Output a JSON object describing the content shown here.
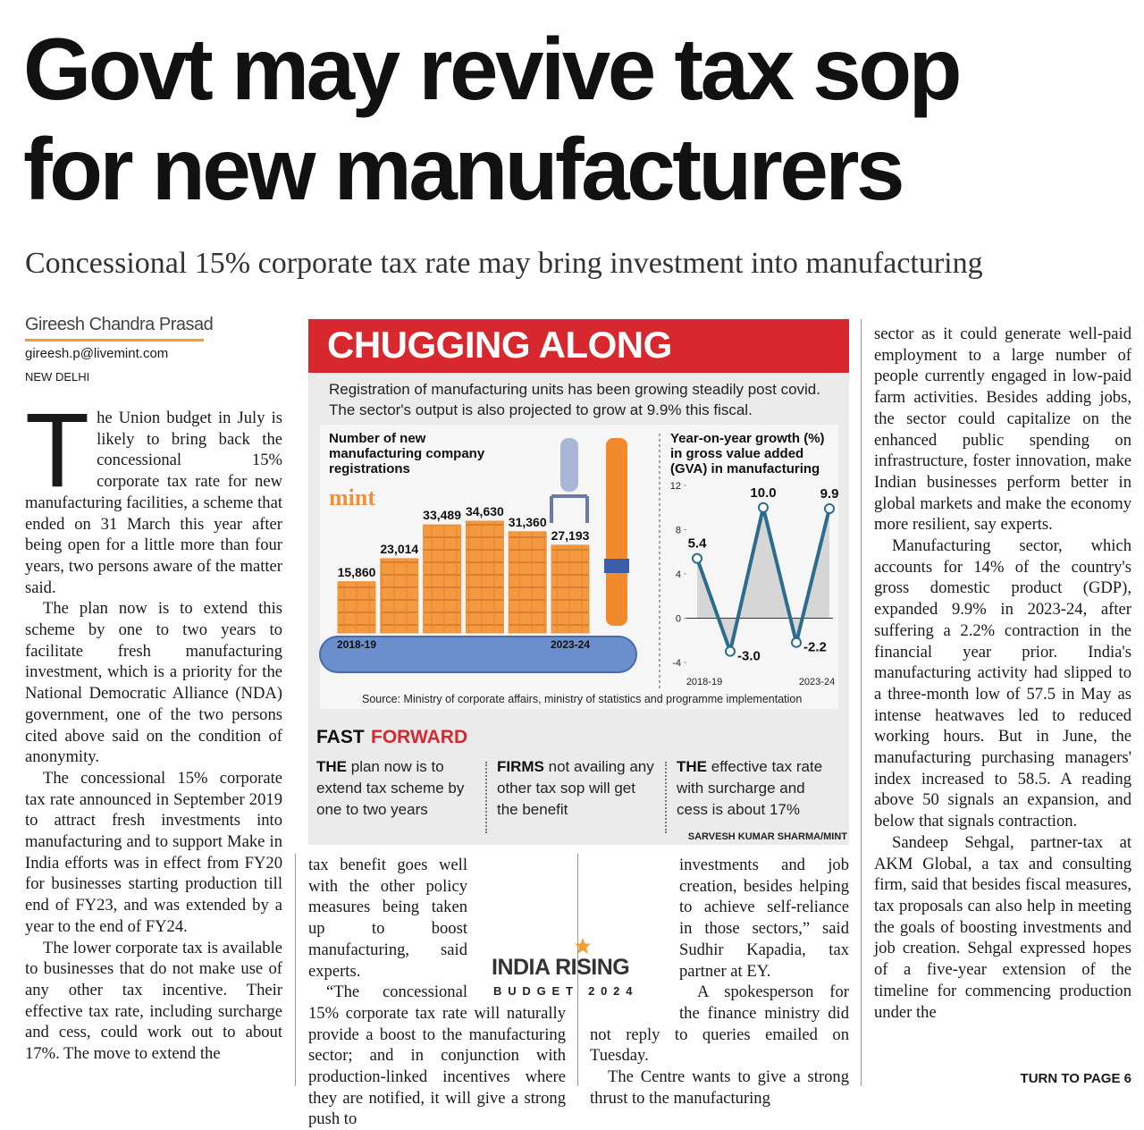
{
  "headline": [
    "Govt may revive tax sop",
    "for new manufacturers"
  ],
  "subheadline": "Concessional 15% corporate tax rate may bring investment into manufacturing",
  "byline": {
    "author": "Gireesh Chandra Prasad",
    "email": "gireesh.p@livemint.com",
    "dateline": "NEW DELHI"
  },
  "graphic": {
    "title": "CHUGGING ALONG",
    "description": "Registration of manufacturing units has been growing steadily post covid. The sector's output is also projected to grow at 9.9% this fiscal.",
    "source": "Source: Ministry of corporate affairs, ministry of statistics and programme implementation",
    "fast_forward": {
      "label_1": "FAST",
      "label_2": "FORWARD",
      "points": [
        {
          "lead": "THE",
          "text": "plan now is to extend tax scheme by one to two years"
        },
        {
          "lead": "FIRMS",
          "text": "not availing any other tax sop will get the benefit"
        },
        {
          "lead": "THE",
          "text": "effective tax rate with surcharge and cess is about 17%"
        }
      ]
    },
    "credit": "SARVESH KUMAR SHARMA/MINT"
  },
  "chart_data": [
    {
      "type": "bar",
      "title": "Number of new manufacturing company registrations",
      "brand": "mint",
      "categories": [
        "2018-19",
        null,
        null,
        null,
        null,
        "2023-24"
      ],
      "values": [
        15860,
        23014,
        33489,
        34630,
        31360,
        27193
      ],
      "value_labels": [
        "15,860",
        "23,014",
        "33,489",
        "34,630",
        "31,360",
        "27,193"
      ],
      "color": "#f0913a"
    },
    {
      "type": "line",
      "title": "Year-on-year growth (%) in gross value added (GVA) in manufacturing",
      "categories": [
        "2018-19",
        null,
        null,
        null,
        "2023-24"
      ],
      "values": [
        5.4,
        -3.0,
        10.0,
        -2.2,
        9.9
      ],
      "value_labels": [
        "5.4",
        "-3.0",
        "10.0",
        "-2.2",
        "9.9"
      ],
      "color": "#2b6c8f",
      "ylim": [
        -4,
        12
      ],
      "yticks": [
        -4,
        0,
        4,
        8,
        12
      ],
      "area": true
    }
  ],
  "article": {
    "columns": [
      [
        "The Union budget in July is likely to bring back the concessional 15% corporate tax rate for new manufacturing facilities, a scheme that ended on 31 March this year after being open for a little more than four years, two persons aware of the matter said.",
        "The plan now is to extend this scheme by one to two years to facilitate fresh manufacturing investment, which is a priority for the National Democratic Alliance (NDA) government, one of the two persons cited above said on the condition of anonymity.",
        "The concessional 15% corporate tax rate announced in September 2019 to attract fresh investments into manufacturing and to support Make in India efforts was in effect from FY20 for businesses starting production till end of FY23, and was extended by a year to the end of FY24.",
        "The lower corporate tax is available to businesses that do not make use of any other tax incentive. Their effective tax rate, including surcharge and cess, could work out to about 17%. The move to extend the"
      ],
      [
        "tax benefit goes well with the other policy measures being taken up to boost manufacturing, said experts.",
        "“The concessional 15% corporate tax rate will naturally provide a boost to the manufacturing sector; and in conjunction with production-linked incentives where they are notified, it will give a strong push to"
      ],
      [
        "investments and job creation, besides helping to achieve self-reliance in those sectors,” said Sudhir Kapadia, tax partner at EY.",
        "A spokesperson for the finance ministry did not reply to queries emailed on Tuesday.",
        "The Centre wants to give a strong thrust to the manufacturing"
      ],
      [
        "sector as it could generate well-paid employment to a large number of people currently engaged in low-paid farm activities. Besides adding jobs, the sector could capitalize on the enhanced public spending on infrastructure, foster innovation, make Indian businesses perform better in global markets and make the economy more resilient, say experts.",
        "Manufacturing sector, which accounts for 14% of the country's gross domestic product (GDP), expanded 9.9% in 2023-24, after suffering a 2.2% contraction in the financial year prior. India's manufacturing activity had slipped to a three-month low of 57.5 in May as intense heatwaves led to reduced working hours. But in June, the manufacturing purchasing managers' index increased to 58.5. A reading above 50 signals an expansion, and below that signals contraction.",
        "Sandeep Sehgal, partner-tax at AKM Global, a tax and consulting firm, said that besides fiscal measures, tax proposals can also help in meeting the goals of boosting investments and job creation. Sehgal expressed hopes of a five-year extension of the timeline for commencing production under the"
      ]
    ],
    "jump": "TURN TO PAGE 6"
  },
  "logo": {
    "word_1": "INDIA",
    "word_2": "RISING",
    "tagline": "BUDGET 2024"
  }
}
